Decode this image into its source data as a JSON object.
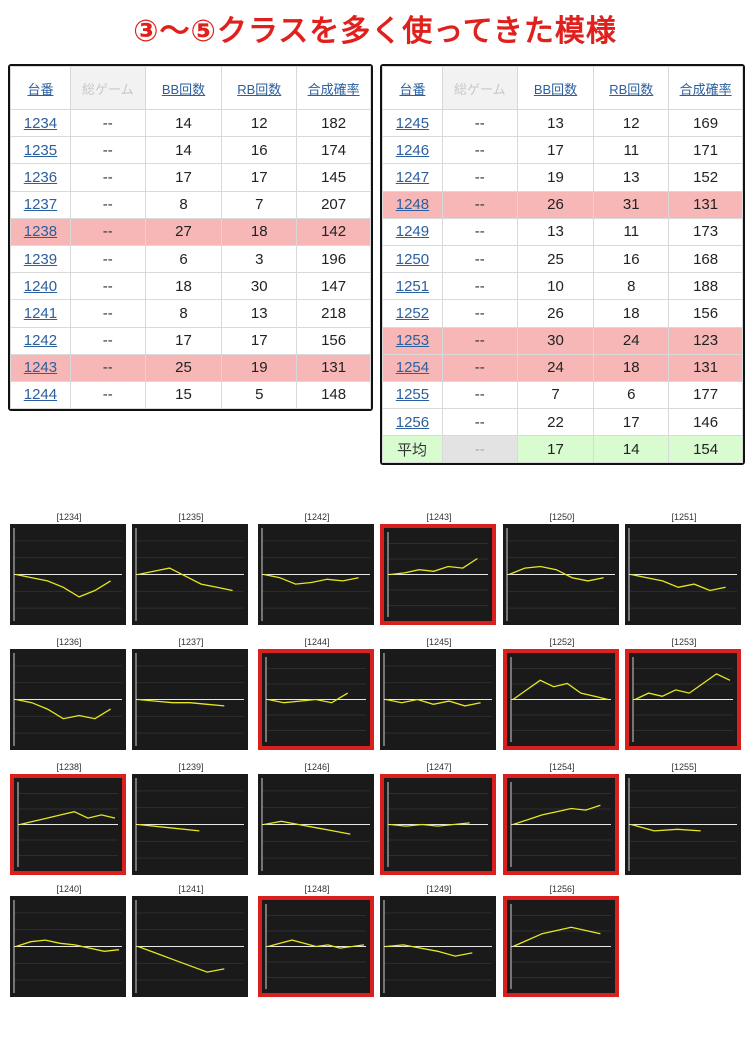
{
  "title": "③～⑤クラスを多く使ってきた模様",
  "headers": [
    "台番",
    "総ゲーム",
    "BB回数",
    "RB回数",
    "合成確率"
  ],
  "colors": {
    "title": "#e0201d",
    "highlight_row": "#f7b7b7",
    "average_row": "#d9fbd0",
    "selected_border": "#d9201d",
    "graph_line": "#e6e620",
    "graph_bg": "#1a1a1a"
  },
  "table_left": [
    {
      "id": "1234",
      "games": "--",
      "bb": "14",
      "rb": "12",
      "rate": "182",
      "hl": false
    },
    {
      "id": "1235",
      "games": "--",
      "bb": "14",
      "rb": "16",
      "rate": "174",
      "hl": false
    },
    {
      "id": "1236",
      "games": "--",
      "bb": "17",
      "rb": "17",
      "rate": "145",
      "hl": false
    },
    {
      "id": "1237",
      "games": "--",
      "bb": "8",
      "rb": "7",
      "rate": "207",
      "hl": false
    },
    {
      "id": "1238",
      "games": "--",
      "bb": "27",
      "rb": "18",
      "rate": "142",
      "hl": true
    },
    {
      "id": "1239",
      "games": "--",
      "bb": "6",
      "rb": "3",
      "rate": "196",
      "hl": false
    },
    {
      "id": "1240",
      "games": "--",
      "bb": "18",
      "rb": "30",
      "rate": "147",
      "hl": false
    },
    {
      "id": "1241",
      "games": "--",
      "bb": "8",
      "rb": "13",
      "rate": "218",
      "hl": false
    },
    {
      "id": "1242",
      "games": "--",
      "bb": "17",
      "rb": "17",
      "rate": "156",
      "hl": false
    },
    {
      "id": "1243",
      "games": "--",
      "bb": "25",
      "rb": "19",
      "rate": "131",
      "hl": true
    },
    {
      "id": "1244",
      "games": "--",
      "bb": "15",
      "rb": "5",
      "rate": "148",
      "hl": false
    }
  ],
  "table_right": [
    {
      "id": "1245",
      "games": "--",
      "bb": "13",
      "rb": "12",
      "rate": "169",
      "hl": false
    },
    {
      "id": "1246",
      "games": "--",
      "bb": "17",
      "rb": "11",
      "rate": "171",
      "hl": false
    },
    {
      "id": "1247",
      "games": "--",
      "bb": "19",
      "rb": "13",
      "rate": "152",
      "hl": false
    },
    {
      "id": "1248",
      "games": "--",
      "bb": "26",
      "rb": "31",
      "rate": "131",
      "hl": true
    },
    {
      "id": "1249",
      "games": "--",
      "bb": "13",
      "rb": "11",
      "rate": "173",
      "hl": false
    },
    {
      "id": "1250",
      "games": "--",
      "bb": "25",
      "rb": "16",
      "rate": "168",
      "hl": false
    },
    {
      "id": "1251",
      "games": "--",
      "bb": "10",
      "rb": "8",
      "rate": "188",
      "hl": false
    },
    {
      "id": "1252",
      "games": "--",
      "bb": "26",
      "rb": "18",
      "rate": "156",
      "hl": false
    },
    {
      "id": "1253",
      "games": "--",
      "bb": "30",
      "rb": "24",
      "rate": "123",
      "hl": true
    },
    {
      "id": "1254",
      "games": "--",
      "bb": "24",
      "rb": "18",
      "rate": "131",
      "hl": true
    },
    {
      "id": "1255",
      "games": "--",
      "bb": "7",
      "rb": "6",
      "rate": "177",
      "hl": false
    },
    {
      "id": "1256",
      "games": "--",
      "bb": "22",
      "rb": "17",
      "rate": "146",
      "hl": false
    }
  ],
  "average": {
    "label": "平均",
    "games": "--",
    "bb": "17",
    "rb": "14",
    "rate": "154"
  },
  "graphs": [
    {
      "label": "[1234]",
      "selected": false,
      "points": [
        0,
        -2,
        -4,
        -8,
        -14,
        -10,
        -4
      ]
    },
    {
      "label": "[1235]",
      "selected": false,
      "points": [
        0,
        2,
        4,
        -1,
        -6,
        -8,
        -10
      ]
    },
    {
      "label": "[1242]",
      "selected": false,
      "points": [
        0,
        -2,
        -6,
        -5,
        -3,
        -4,
        -2
      ]
    },
    {
      "label": "[1243]",
      "selected": true,
      "points": [
        0,
        1,
        3,
        2,
        5,
        4,
        10
      ]
    },
    {
      "label": "[1250]",
      "selected": false,
      "points": [
        0,
        4,
        5,
        3,
        -2,
        -4,
        -2
      ]
    },
    {
      "label": "[1251]",
      "selected": false,
      "points": [
        0,
        -2,
        -4,
        -8,
        -6,
        -10,
        -8
      ]
    },
    {
      "label": "[1236]",
      "selected": false,
      "points": [
        0,
        -2,
        -6,
        -12,
        -10,
        -12,
        -6
      ]
    },
    {
      "label": "[1237]",
      "selected": false,
      "points": [
        0,
        -1,
        -2,
        -2,
        -3,
        -4
      ]
    },
    {
      "label": "[1244]",
      "selected": true,
      "points": [
        0,
        -2,
        -1,
        0,
        -2,
        4
      ]
    },
    {
      "label": "[1245]",
      "selected": false,
      "points": [
        0,
        -2,
        0,
        -3,
        -1,
        -4,
        -2
      ]
    },
    {
      "label": "[1252]",
      "selected": true,
      "points": [
        0,
        6,
        12,
        8,
        10,
        4,
        2,
        0
      ]
    },
    {
      "label": "[1253]",
      "selected": true,
      "points": [
        0,
        4,
        2,
        6,
        4,
        10,
        16,
        12
      ]
    },
    {
      "label": "[1238]",
      "selected": true,
      "points": [
        0,
        2,
        4,
        6,
        8,
        4,
        6,
        4
      ]
    },
    {
      "label": "[1239]",
      "selected": false,
      "points": [
        0,
        -2,
        -4
      ]
    },
    {
      "label": "[1246]",
      "selected": false,
      "points": [
        0,
        2,
        0,
        -2,
        -4,
        -6
      ]
    },
    {
      "label": "[1247]",
      "selected": true,
      "points": [
        0,
        -1,
        0,
        -1,
        0,
        1
      ]
    },
    {
      "label": "[1254]",
      "selected": true,
      "points": [
        0,
        3,
        6,
        8,
        10,
        9,
        12
      ]
    },
    {
      "label": "[1255]",
      "selected": false,
      "points": [
        0,
        -4,
        -3,
        -4
      ]
    },
    {
      "label": "[1240]",
      "selected": false,
      "points": [
        0,
        3,
        4,
        2,
        1,
        -1,
        -3,
        -2
      ]
    },
    {
      "label": "[1241]",
      "selected": false,
      "points": [
        0,
        -4,
        -8,
        -12,
        -16,
        -14
      ]
    },
    {
      "label": "[1248]",
      "selected": true,
      "points": [
        0,
        2,
        4,
        2,
        0,
        1,
        -1,
        0,
        1
      ]
    },
    {
      "label": "[1249]",
      "selected": false,
      "points": [
        0,
        1,
        -1,
        -3,
        -6,
        -4
      ]
    },
    {
      "label": "[1256]",
      "selected": true,
      "points": [
        0,
        4,
        8,
        10,
        12,
        10,
        8
      ]
    }
  ]
}
